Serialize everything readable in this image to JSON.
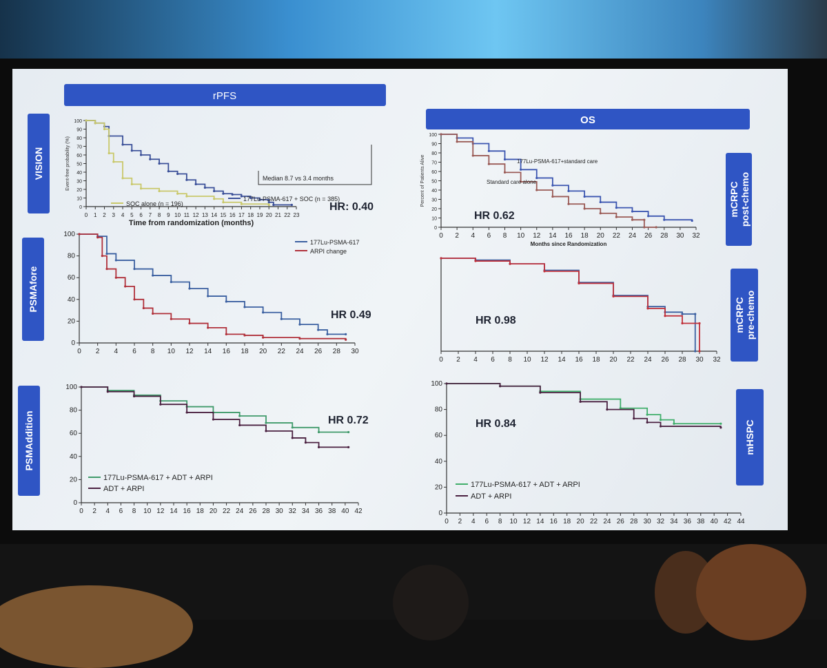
{
  "headers": {
    "left": "rPFS",
    "right": "OS"
  },
  "side_labels": {
    "left": [
      "VISION",
      "PSMAfore",
      "PSMAddition"
    ],
    "right": [
      "mCRPC post-chemo",
      "mCRPC pre-chemo",
      "mHSPC"
    ]
  },
  "chart_data": [
    {
      "id": "vision-rpfs",
      "type": "line",
      "title": "VISION rPFS",
      "xlabel": "Time from randomization (months)",
      "ylabel": "Event-free probability (%)",
      "xlim": [
        0,
        23
      ],
      "ylim": [
        0,
        100
      ],
      "xticks_step": 1,
      "yticks_step": 10,
      "annotation": "Median 8.7 vs 3.4 months",
      "hr": "HR: 0.40",
      "series": [
        {
          "name": "177Lu-PSMA-617 + SOC (n = 385)",
          "color": "#3a4f98",
          "points": [
            [
              0,
              100
            ],
            [
              1,
              97
            ],
            [
              2,
              93
            ],
            [
              2.5,
              82
            ],
            [
              4,
              72
            ],
            [
              5,
              65
            ],
            [
              6,
              60
            ],
            [
              7,
              55
            ],
            [
              8,
              50
            ],
            [
              9,
              41
            ],
            [
              10,
              38
            ],
            [
              11,
              31
            ],
            [
              12,
              26
            ],
            [
              13,
              22
            ],
            [
              14,
              18
            ],
            [
              15,
              15
            ],
            [
              16,
              14
            ],
            [
              17,
              12
            ],
            [
              18,
              10
            ],
            [
              19,
              8
            ],
            [
              20,
              5
            ],
            [
              20.5,
              2
            ],
            [
              22.5,
              2
            ]
          ]
        },
        {
          "name": "SOC alone (n = 196)",
          "color": "#c9c86a",
          "points": [
            [
              0,
              100
            ],
            [
              1,
              97
            ],
            [
              2,
              90
            ],
            [
              2.5,
              62
            ],
            [
              3,
              52
            ],
            [
              4,
              33
            ],
            [
              5,
              26
            ],
            [
              6,
              21
            ],
            [
              8,
              18
            ],
            [
              10,
              15
            ],
            [
              11,
              12
            ],
            [
              14,
              9
            ],
            [
              15,
              5
            ],
            [
              17,
              3
            ],
            [
              20,
              2
            ]
          ]
        }
      ]
    },
    {
      "id": "vision-os",
      "type": "line",
      "title": "VISION OS",
      "xlabel": "Months since Randomization",
      "ylabel": "Percent of Patients Alive",
      "xlim": [
        0,
        32
      ],
      "ylim": [
        0,
        100
      ],
      "xticks_step": 2,
      "yticks_step": 10,
      "hr": "HR 0.62",
      "series": [
        {
          "name": "177Lu-PSMA-617+standard care",
          "color": "#3b55b0",
          "points": [
            [
              0,
              100
            ],
            [
              2,
              96
            ],
            [
              4,
              90
            ],
            [
              6,
              82
            ],
            [
              8,
              73
            ],
            [
              10,
              62
            ],
            [
              12,
              53
            ],
            [
              14,
              45
            ],
            [
              16,
              39
            ],
            [
              18,
              33
            ],
            [
              20,
              27
            ],
            [
              22,
              21
            ],
            [
              24,
              17
            ],
            [
              26,
              12
            ],
            [
              28,
              8
            ],
            [
              31.5,
              7
            ]
          ]
        },
        {
          "name": "Standard care alone",
          "color": "#9a5a55",
          "points": [
            [
              0,
              100
            ],
            [
              2,
              92
            ],
            [
              4,
              77
            ],
            [
              6,
              68
            ],
            [
              8,
              59
            ],
            [
              10,
              49
            ],
            [
              12,
              40
            ],
            [
              14,
              33
            ],
            [
              16,
              25
            ],
            [
              18,
              20
            ],
            [
              20,
              15
            ],
            [
              22,
              11
            ],
            [
              24,
              8
            ],
            [
              25.5,
              8
            ],
            [
              25.5,
              0
            ],
            [
              27,
              0
            ]
          ]
        }
      ]
    },
    {
      "id": "psmafore",
      "type": "line",
      "title": "PSMAfore rPFS",
      "xlim": [
        0,
        30
      ],
      "ylim": [
        0,
        100
      ],
      "xticks_step": 2,
      "yticks_step": 20,
      "hr": "HR 0.49",
      "series": [
        {
          "name": "177Lu-PSMA-617",
          "color": "#3a5fa0",
          "points": [
            [
              0,
              100
            ],
            [
              2,
              98
            ],
            [
              3,
              82
            ],
            [
              4,
              76
            ],
            [
              6,
              68
            ],
            [
              8,
              62
            ],
            [
              10,
              56
            ],
            [
              12,
              50
            ],
            [
              14,
              43
            ],
            [
              16,
              38
            ],
            [
              18,
              33
            ],
            [
              20,
              28
            ],
            [
              22,
              22
            ],
            [
              24,
              17
            ],
            [
              26,
              12
            ],
            [
              27,
              8
            ],
            [
              29,
              8
            ]
          ]
        },
        {
          "name": "ARPI change",
          "color": "#b0303a",
          "points": [
            [
              0,
              100
            ],
            [
              2,
              97
            ],
            [
              2.5,
              80
            ],
            [
              3,
              68
            ],
            [
              4,
              60
            ],
            [
              5,
              52
            ],
            [
              6,
              40
            ],
            [
              7,
              32
            ],
            [
              8,
              27
            ],
            [
              10,
              22
            ],
            [
              12,
              18
            ],
            [
              14,
              14
            ],
            [
              16,
              8
            ],
            [
              18,
              7
            ],
            [
              20,
              5
            ],
            [
              24,
              4
            ],
            [
              29,
              3
            ]
          ]
        }
      ]
    },
    {
      "id": "psmafore-os",
      "type": "line",
      "title": "PSMAfore OS",
      "xlim": [
        0,
        32
      ],
      "ylim": [
        0,
        100
      ],
      "xticks_step": 2,
      "yticks_step": null,
      "hr": "HR 0.98",
      "series": [
        {
          "name": "177Lu-PSMA-617",
          "color": "#3a5fa0",
          "points": [
            [
              0,
              100
            ],
            [
              4,
              98
            ],
            [
              8,
              94
            ],
            [
              12,
              87
            ],
            [
              16,
              74
            ],
            [
              20,
              60
            ],
            [
              24,
              48
            ],
            [
              26,
              42
            ],
            [
              28,
              40
            ],
            [
              29.5,
              40
            ],
            [
              29.5,
              0
            ]
          ]
        },
        {
          "name": "ARPI change",
          "color": "#c0303a",
          "points": [
            [
              0,
              100
            ],
            [
              4,
              97
            ],
            [
              8,
              94
            ],
            [
              12,
              86
            ],
            [
              16,
              73
            ],
            [
              20,
              59
            ],
            [
              24,
              46
            ],
            [
              26,
              38
            ],
            [
              28,
              30
            ],
            [
              30,
              30
            ],
            [
              30,
              0
            ]
          ]
        }
      ]
    },
    {
      "id": "psmaddition-rpfs",
      "type": "line",
      "title": "PSMAddition rPFS",
      "xlim": [
        0,
        42
      ],
      "ylim": [
        0,
        100
      ],
      "xticks_step": 2,
      "yticks_step": 20,
      "hr": "HR 0.72",
      "series": [
        {
          "name": "177Lu-PSMA-617 + ADT + ARPI",
          "color": "#3f9a6a",
          "points": [
            [
              0,
              100
            ],
            [
              4,
              97
            ],
            [
              8,
              93
            ],
            [
              12,
              88
            ],
            [
              16,
              83
            ],
            [
              20,
              78
            ],
            [
              24,
              75
            ],
            [
              28,
              69
            ],
            [
              32,
              65
            ],
            [
              36,
              61
            ],
            [
              40.5,
              61
            ]
          ]
        },
        {
          "name": "ADT + ARPI",
          "color": "#4a2040",
          "points": [
            [
              0,
              100
            ],
            [
              4,
              96
            ],
            [
              8,
              92
            ],
            [
              12,
              85
            ],
            [
              16,
              78
            ],
            [
              20,
              72
            ],
            [
              24,
              67
            ],
            [
              28,
              62
            ],
            [
              32,
              56
            ],
            [
              34,
              52
            ],
            [
              36,
              48
            ],
            [
              40.5,
              48
            ]
          ]
        }
      ]
    },
    {
      "id": "psmaddition-os",
      "type": "line",
      "title": "PSMAddition OS",
      "xlim": [
        0,
        44
      ],
      "ylim": [
        0,
        100
      ],
      "xticks_step": 2,
      "yticks_step": 20,
      "hr": "HR 0.84",
      "series": [
        {
          "name": "177Lu-PSMA-617 + ADT + ARPI",
          "color": "#3fae6a",
          "points": [
            [
              0,
              100
            ],
            [
              8,
              98
            ],
            [
              14,
              94
            ],
            [
              20,
              88
            ],
            [
              26,
              81
            ],
            [
              30,
              76
            ],
            [
              32,
              72
            ],
            [
              34,
              69
            ],
            [
              41,
              69
            ]
          ]
        },
        {
          "name": "ADT + ARPI",
          "color": "#4a2040",
          "points": [
            [
              0,
              100
            ],
            [
              8,
              98
            ],
            [
              14,
              93
            ],
            [
              20,
              86
            ],
            [
              24,
              80
            ],
            [
              28,
              73
            ],
            [
              30,
              70
            ],
            [
              32,
              67
            ],
            [
              41,
              66
            ]
          ]
        }
      ]
    }
  ]
}
